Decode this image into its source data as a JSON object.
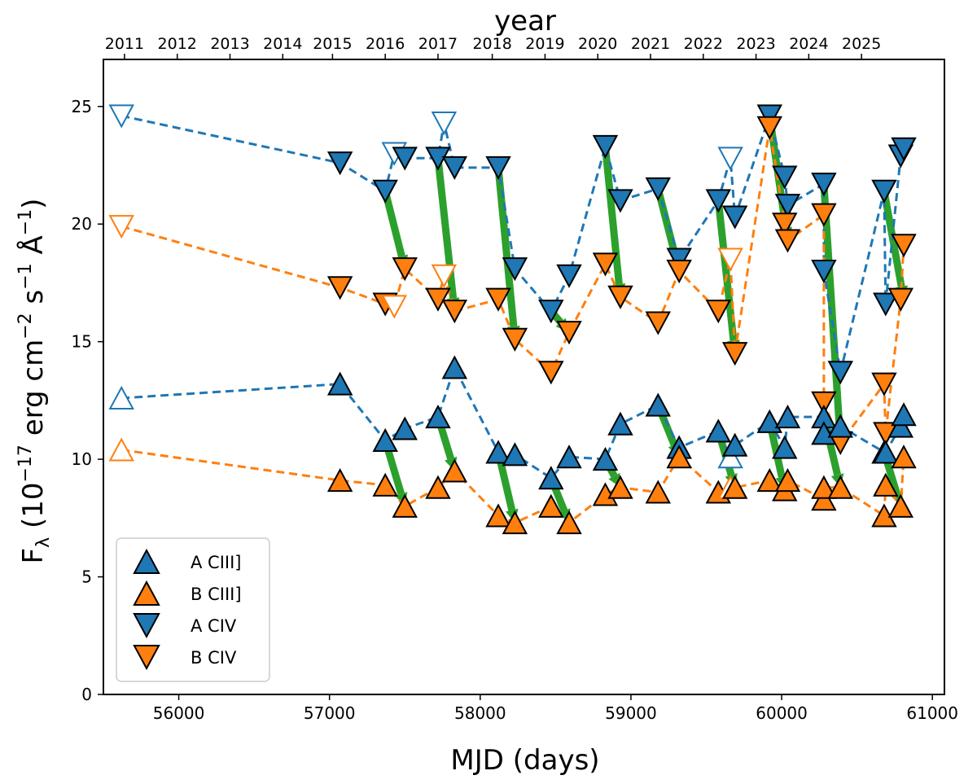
{
  "chart_data": {
    "type": "scatter",
    "xlabel": "MJD (days)",
    "ylabel_html": "F<sub>λ</sub> (10<sup>−17</sup> erg cm<sup>−2</sup> s<sup>−1</sup> Å<sup>−1</sup>)",
    "ylabel_parts": {
      "f": "F",
      "lambda": "λ",
      "open": " (10",
      "exp1": "−17",
      "erg": " erg cm",
      "exp2": "−2",
      "s": " s",
      "exp3": "−1",
      "ang": " Å",
      "exp4": "−1",
      "close": ")"
    },
    "top_axis_title": "year",
    "xlim": [
      55500,
      61080
    ],
    "ylim": [
      0,
      27
    ],
    "x_ticks": [
      56000,
      57000,
      58000,
      59000,
      60000,
      61000
    ],
    "y_ticks": [
      0,
      5,
      10,
      15,
      20,
      25
    ],
    "top_ticks": [
      {
        "label": "2011",
        "mjd": 55640
      },
      {
        "label": "2012",
        "mjd": 55990
      },
      {
        "label": "2013",
        "mjd": 56340
      },
      {
        "label": "2014",
        "mjd": 56690
      },
      {
        "label": "2015",
        "mjd": 57020
      },
      {
        "label": "2016",
        "mjd": 57370
      },
      {
        "label": "2017",
        "mjd": 57720
      },
      {
        "label": "2018",
        "mjd": 58080
      },
      {
        "label": "2019",
        "mjd": 58430
      },
      {
        "label": "2020",
        "mjd": 58780
      },
      {
        "label": "2021",
        "mjd": 59130
      },
      {
        "label": "2022",
        "mjd": 59480
      },
      {
        "label": "2023",
        "mjd": 59830
      },
      {
        "label": "2024",
        "mjd": 60180
      },
      {
        "label": "2025",
        "mjd": 60530
      }
    ],
    "colors": {
      "blue": "#1f77b4",
      "orange": "#ff7f0e",
      "green": "#2ca02c"
    },
    "legend": {
      "position": "lower-left",
      "entries": [
        {
          "label": "A CIII]",
          "series": "A_CIII"
        },
        {
          "label": "B CIII]",
          "series": "B_CIII"
        },
        {
          "label": "A CIV",
          "series": "A_CIV"
        },
        {
          "label": "B CIV",
          "series": "B_CIV"
        }
      ]
    },
    "series": [
      {
        "id": "A_CIV",
        "name": "A CIV",
        "color": "#1f77b4",
        "marker": "triangle-down",
        "points": [
          {
            "x": 55620,
            "y": 24.6,
            "open": true
          },
          {
            "x": 57070,
            "y": 22.6
          },
          {
            "x": 57370,
            "y": 21.4
          },
          {
            "x": 57430,
            "y": 23.0,
            "open": true
          },
          {
            "x": 57500,
            "y": 22.8
          },
          {
            "x": 57720,
            "y": 22.8
          },
          {
            "x": 57760,
            "y": 24.3,
            "open": true
          },
          {
            "x": 57830,
            "y": 22.4
          },
          {
            "x": 58120,
            "y": 22.4
          },
          {
            "x": 58230,
            "y": 18.1
          },
          {
            "x": 58470,
            "y": 16.3
          },
          {
            "x": 58590,
            "y": 17.8
          },
          {
            "x": 58830,
            "y": 23.3
          },
          {
            "x": 58930,
            "y": 21.0
          },
          {
            "x": 59180,
            "y": 21.5
          },
          {
            "x": 59320,
            "y": 18.5
          },
          {
            "x": 59580,
            "y": 21.0
          },
          {
            "x": 59660,
            "y": 22.8,
            "open": true
          },
          {
            "x": 59690,
            "y": 20.3
          },
          {
            "x": 59920,
            "y": 24.6
          },
          {
            "x": 60020,
            "y": 22.0
          },
          {
            "x": 60040,
            "y": 20.8
          },
          {
            "x": 60280,
            "y": 21.7
          },
          {
            "x": 60280,
            "y": 18.0
          },
          {
            "x": 60390,
            "y": 13.7
          },
          {
            "x": 60680,
            "y": 21.4
          },
          {
            "x": 60690,
            "y": 16.6
          },
          {
            "x": 60790,
            "y": 22.9
          },
          {
            "x": 60810,
            "y": 23.2
          }
        ]
      },
      {
        "id": "B_CIV",
        "name": "B CIV",
        "color": "#ff7f0e",
        "marker": "triangle-down",
        "points": [
          {
            "x": 55620,
            "y": 19.9,
            "open": true
          },
          {
            "x": 57070,
            "y": 17.3
          },
          {
            "x": 57370,
            "y": 16.6
          },
          {
            "x": 57430,
            "y": 16.5,
            "open": true
          },
          {
            "x": 57500,
            "y": 18.1
          },
          {
            "x": 57720,
            "y": 16.8
          },
          {
            "x": 57760,
            "y": 17.8,
            "open": true
          },
          {
            "x": 57830,
            "y": 16.3
          },
          {
            "x": 58120,
            "y": 16.8
          },
          {
            "x": 58230,
            "y": 15.1
          },
          {
            "x": 58470,
            "y": 13.7
          },
          {
            "x": 58590,
            "y": 15.4
          },
          {
            "x": 58830,
            "y": 18.3
          },
          {
            "x": 58930,
            "y": 16.9
          },
          {
            "x": 59180,
            "y": 15.8
          },
          {
            "x": 59320,
            "y": 18.0
          },
          {
            "x": 59580,
            "y": 16.3
          },
          {
            "x": 59660,
            "y": 18.5,
            "open": true
          },
          {
            "x": 59690,
            "y": 14.5
          },
          {
            "x": 59920,
            "y": 24.1
          },
          {
            "x": 60020,
            "y": 20.0
          },
          {
            "x": 60040,
            "y": 19.3
          },
          {
            "x": 60280,
            "y": 20.4
          },
          {
            "x": 60280,
            "y": 12.4
          },
          {
            "x": 60390,
            "y": 10.7
          },
          {
            "x": 60680,
            "y": 13.2
          },
          {
            "x": 60690,
            "y": 11.1
          },
          {
            "x": 60790,
            "y": 16.8
          },
          {
            "x": 60810,
            "y": 19.1
          }
        ]
      },
      {
        "id": "A_CIII",
        "name": "A CIII]",
        "color": "#1f77b4",
        "marker": "triangle-up",
        "points": [
          {
            "x": 55620,
            "y": 12.6,
            "open": true
          },
          {
            "x": 57070,
            "y": 13.2
          },
          {
            "x": 57370,
            "y": 10.8
          },
          {
            "x": 57500,
            "y": 11.3
          },
          {
            "x": 57720,
            "y": 11.8
          },
          {
            "x": 57830,
            "y": 13.9
          },
          {
            "x": 58120,
            "y": 10.3
          },
          {
            "x": 58230,
            "y": 10.2
          },
          {
            "x": 58470,
            "y": 9.2
          },
          {
            "x": 58590,
            "y": 10.1
          },
          {
            "x": 58830,
            "y": 10.0
          },
          {
            "x": 58930,
            "y": 11.5
          },
          {
            "x": 59180,
            "y": 12.3
          },
          {
            "x": 59320,
            "y": 10.5
          },
          {
            "x": 59580,
            "y": 11.2
          },
          {
            "x": 59660,
            "y": 10.1,
            "open": true
          },
          {
            "x": 59690,
            "y": 10.6
          },
          {
            "x": 59920,
            "y": 11.6
          },
          {
            "x": 60020,
            "y": 10.5
          },
          {
            "x": 60040,
            "y": 11.8
          },
          {
            "x": 60280,
            "y": 11.8
          },
          {
            "x": 60280,
            "y": 11.1
          },
          {
            "x": 60390,
            "y": 11.4
          },
          {
            "x": 60680,
            "y": 10.3
          },
          {
            "x": 60690,
            "y": 10.3
          },
          {
            "x": 60790,
            "y": 11.4
          },
          {
            "x": 60810,
            "y": 11.9
          }
        ]
      },
      {
        "id": "B_CIII",
        "name": "B CIII]",
        "color": "#ff7f0e",
        "marker": "triangle-up",
        "points": [
          {
            "x": 55620,
            "y": 10.4,
            "open": true
          },
          {
            "x": 57070,
            "y": 9.1
          },
          {
            "x": 57370,
            "y": 8.9
          },
          {
            "x": 57500,
            "y": 8.0
          },
          {
            "x": 57720,
            "y": 8.8
          },
          {
            "x": 57830,
            "y": 9.5
          },
          {
            "x": 58120,
            "y": 7.6
          },
          {
            "x": 58230,
            "y": 7.3
          },
          {
            "x": 58470,
            "y": 8.0
          },
          {
            "x": 58590,
            "y": 7.3
          },
          {
            "x": 58830,
            "y": 8.5
          },
          {
            "x": 58930,
            "y": 8.8
          },
          {
            "x": 59180,
            "y": 8.6
          },
          {
            "x": 59320,
            "y": 10.1
          },
          {
            "x": 59580,
            "y": 8.6
          },
          {
            "x": 59660,
            "y": 8.8,
            "open": true
          },
          {
            "x": 59690,
            "y": 8.8
          },
          {
            "x": 59920,
            "y": 9.1
          },
          {
            "x": 60020,
            "y": 8.7
          },
          {
            "x": 60040,
            "y": 9.1
          },
          {
            "x": 60280,
            "y": 8.3
          },
          {
            "x": 60280,
            "y": 8.8
          },
          {
            "x": 60390,
            "y": 8.8
          },
          {
            "x": 60680,
            "y": 7.6
          },
          {
            "x": 60690,
            "y": 8.9
          },
          {
            "x": 60790,
            "y": 8.0
          },
          {
            "x": 60810,
            "y": 10.1
          }
        ]
      }
    ],
    "arrows": [
      {
        "x1": 57370,
        "y1": 21.4,
        "x2": 57500,
        "y2": 18.1
      },
      {
        "x1": 57720,
        "y1": 22.8,
        "x2": 57830,
        "y2": 16.3
      },
      {
        "x1": 58120,
        "y1": 22.4,
        "x2": 58230,
        "y2": 15.1
      },
      {
        "x1": 58470,
        "y1": 16.3,
        "x2": 58590,
        "y2": 15.4
      },
      {
        "x1": 58830,
        "y1": 23.3,
        "x2": 58930,
        "y2": 16.9
      },
      {
        "x1": 59180,
        "y1": 21.5,
        "x2": 59320,
        "y2": 18.0
      },
      {
        "x1": 59580,
        "y1": 21.0,
        "x2": 59690,
        "y2": 14.5
      },
      {
        "x1": 59920,
        "y1": 24.6,
        "x2": 60040,
        "y2": 19.3
      },
      {
        "x1": 60280,
        "y1": 21.7,
        "x2": 60390,
        "y2": 10.7
      },
      {
        "x1": 60680,
        "y1": 21.4,
        "x2": 60810,
        "y2": 16.8
      },
      {
        "x1": 57370,
        "y1": 10.8,
        "x2": 57500,
        "y2": 8.0
      },
      {
        "x1": 57720,
        "y1": 11.8,
        "x2": 57830,
        "y2": 9.5
      },
      {
        "x1": 58120,
        "y1": 10.3,
        "x2": 58230,
        "y2": 7.3
      },
      {
        "x1": 58470,
        "y1": 9.2,
        "x2": 58590,
        "y2": 7.3
      },
      {
        "x1": 58830,
        "y1": 10.0,
        "x2": 58930,
        "y2": 8.8
      },
      {
        "x1": 59180,
        "y1": 12.3,
        "x2": 59320,
        "y2": 10.1
      },
      {
        "x1": 59580,
        "y1": 11.2,
        "x2": 59690,
        "y2": 8.8
      },
      {
        "x1": 59920,
        "y1": 11.6,
        "x2": 60020,
        "y2": 8.7
      },
      {
        "x1": 60280,
        "y1": 11.8,
        "x2": 60390,
        "y2": 8.8
      },
      {
        "x1": 60680,
        "y1": 10.3,
        "x2": 60790,
        "y2": 8.0
      }
    ]
  }
}
